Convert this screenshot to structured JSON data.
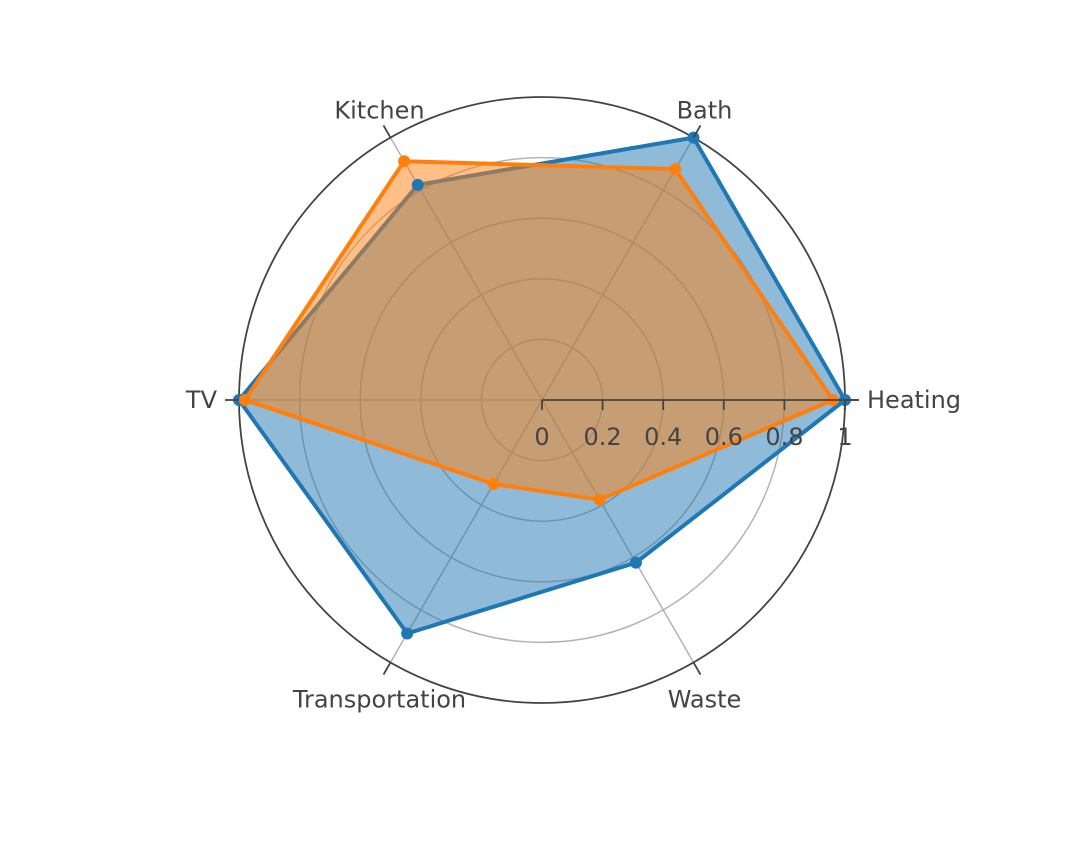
{
  "chart_data": {
    "type": "radar",
    "categories": [
      "Heating",
      "Bath",
      "Kitchen",
      "TV",
      "Transportation",
      "Waste"
    ],
    "radial_range": [
      0,
      1
    ],
    "radial_ticks": [
      "0",
      "0.2",
      "0.4",
      "0.6",
      "0.8",
      "1"
    ],
    "grid": true,
    "legend": "none",
    "series": [
      {
        "color": "#1f77b4",
        "fill_opacity": 0.5,
        "values": [
          1.0,
          1.0,
          0.82,
          1.0,
          0.89,
          0.62
        ]
      },
      {
        "color": "#ff7f0e",
        "fill_opacity": 0.5,
        "values": [
          0.96,
          0.88,
          0.91,
          0.98,
          0.32,
          0.38
        ]
      }
    ]
  }
}
